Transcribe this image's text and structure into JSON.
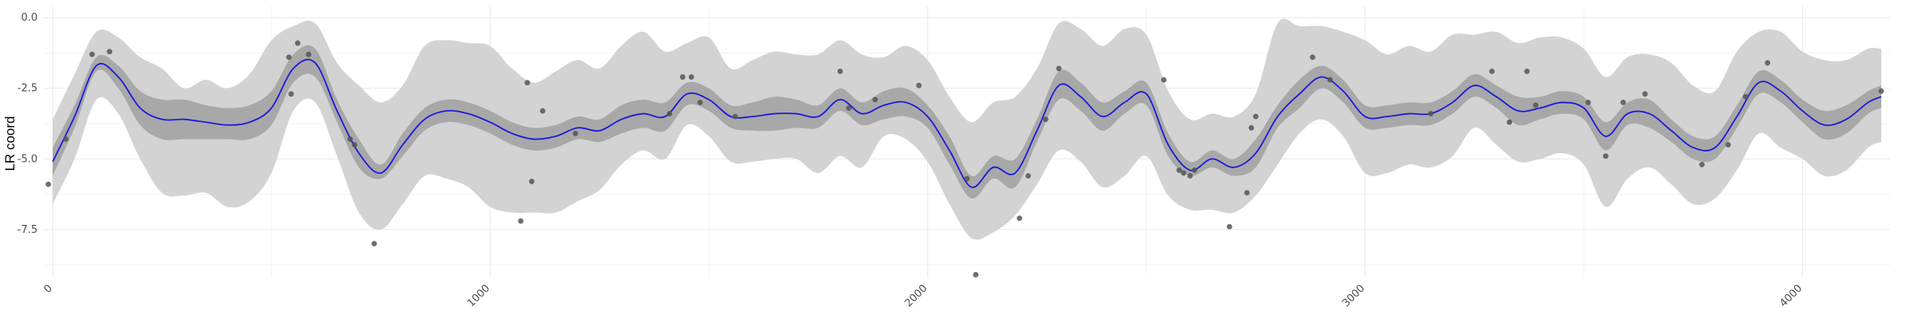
{
  "chart_data": {
    "type": "line",
    "title": "",
    "xlabel": "",
    "ylabel": "LR coord",
    "xlim": [
      -20,
      4200
    ],
    "ylim": [
      -9.2,
      0.4
    ],
    "x_ticks": [
      0,
      1000,
      2000,
      3000,
      4000
    ],
    "x_tick_labels": [
      "0",
      "1000",
      "2000",
      "3000",
      "4000"
    ],
    "y_ticks": [
      0.0,
      -2.5,
      -5.0,
      -7.5
    ],
    "y_tick_labels": [
      "0.0",
      "-2.5",
      "-5.0",
      "-7.5"
    ],
    "grid": true,
    "colors": {
      "mean_line": "#1a1adb",
      "inner_band": "#a8a8a8",
      "outer_band": "#d3d3d3",
      "points": "#555555",
      "grid": "#ebebeb"
    },
    "series": [
      {
        "kind": "line",
        "x": [
          0,
          50,
          100,
          150,
          200,
          250,
          300,
          350,
          400,
          450,
          500,
          550,
          600,
          650,
          700,
          750,
          800,
          850,
          900,
          950,
          1000,
          1050,
          1100,
          1150,
          1200,
          1250,
          1300,
          1350,
          1400,
          1450,
          1500,
          1550,
          1600,
          1650,
          1700,
          1750,
          1800,
          1850,
          1900,
          1950,
          2000,
          2050,
          2100,
          2150,
          2200,
          2250,
          2300,
          2350,
          2400,
          2450,
          2500,
          2550,
          2600,
          2650,
          2700,
          2750,
          2800,
          2850,
          2900,
          2950,
          3000,
          3050,
          3100,
          3150,
          3200,
          3250,
          3300,
          3350,
          3400,
          3450,
          3500,
          3550,
          3600,
          3650,
          3700,
          3750,
          3800,
          3850,
          3900,
          3950,
          4000,
          4050,
          4100,
          4150,
          4180
        ],
        "y": [
          -5.1,
          -3.5,
          -1.7,
          -2.1,
          -3.2,
          -3.6,
          -3.6,
          -3.7,
          -3.8,
          -3.7,
          -3.2,
          -1.8,
          -1.6,
          -3.3,
          -4.8,
          -5.5,
          -4.5,
          -3.6,
          -3.3,
          -3.4,
          -3.7,
          -4.1,
          -4.3,
          -4.2,
          -3.9,
          -4.0,
          -3.6,
          -3.4,
          -3.5,
          -2.7,
          -2.9,
          -3.5,
          -3.5,
          -3.4,
          -3.4,
          -3.5,
          -2.9,
          -3.4,
          -3.1,
          -3.0,
          -3.5,
          -4.7,
          -6.0,
          -5.3,
          -5.5,
          -4.0,
          -2.4,
          -2.8,
          -3.5,
          -3.0,
          -2.7,
          -4.5,
          -5.4,
          -5.0,
          -5.3,
          -4.8,
          -3.5,
          -2.7,
          -2.1,
          -2.6,
          -3.5,
          -3.5,
          -3.4,
          -3.4,
          -3.0,
          -2.4,
          -2.8,
          -3.3,
          -3.2,
          -3.0,
          -3.2,
          -4.2,
          -3.4,
          -3.4,
          -4.0,
          -4.6,
          -4.6,
          -3.5,
          -2.3,
          -2.6,
          -3.3,
          -3.8,
          -3.6,
          -3.0,
          -2.8
        ]
      },
      {
        "kind": "band",
        "name": "inner",
        "lower": [
          -5.6,
          -3.9,
          -1.9,
          -2.5,
          -3.8,
          -4.3,
          -4.3,
          -4.3,
          -4.3,
          -4.3,
          -3.8,
          -2.3,
          -2.1,
          -3.7,
          -5.3,
          -5.7,
          -4.9,
          -4.0,
          -3.7,
          -3.8,
          -4.1,
          -4.5,
          -4.7,
          -4.6,
          -4.3,
          -4.4,
          -4.1,
          -3.9,
          -4.0,
          -3.1,
          -3.3,
          -3.9,
          -4.0,
          -4.0,
          -3.9,
          -3.9,
          -3.3,
          -3.8,
          -3.6,
          -3.5,
          -3.9,
          -5.2,
          -6.4,
          -5.7,
          -6.0,
          -4.4,
          -2.9,
          -3.3,
          -4.0,
          -3.4,
          -3.1,
          -4.9,
          -5.6,
          -5.3,
          -5.6,
          -5.3,
          -3.9,
          -3.2,
          -2.5,
          -3.0,
          -3.9,
          -3.9,
          -3.8,
          -3.8,
          -3.4,
          -2.8,
          -3.2,
          -3.8,
          -3.6,
          -3.4,
          -3.6,
          -4.7,
          -3.8,
          -3.9,
          -4.4,
          -5.0,
          -5.0,
          -3.9,
          -2.7,
          -3.0,
          -3.7,
          -4.3,
          -4.1,
          -3.4,
          -3.2
        ],
        "upper": [
          -4.6,
          -3.1,
          -1.4,
          -1.7,
          -2.6,
          -2.9,
          -2.9,
          -3.1,
          -3.2,
          -3.1,
          -2.6,
          -1.3,
          -1.1,
          -2.9,
          -4.3,
          -5.2,
          -4.1,
          -3.2,
          -2.9,
          -3.0,
          -3.3,
          -3.7,
          -3.9,
          -3.8,
          -3.5,
          -3.6,
          -3.1,
          -2.9,
          -3.0,
          -2.3,
          -2.5,
          -3.1,
          -3.0,
          -2.8,
          -2.9,
          -3.1,
          -2.5,
          -3.0,
          -2.6,
          -2.5,
          -3.1,
          -4.2,
          -5.6,
          -4.9,
          -5.0,
          -3.6,
          -1.9,
          -2.3,
          -3.0,
          -2.6,
          -2.3,
          -4.1,
          -5.1,
          -4.7,
          -5.0,
          -4.3,
          -3.1,
          -2.2,
          -1.7,
          -2.2,
          -3.1,
          -3.1,
          -3.0,
          -3.0,
          -2.6,
          -2.0,
          -2.4,
          -2.8,
          -2.8,
          -2.6,
          -2.8,
          -3.7,
          -3.0,
          -2.9,
          -3.6,
          -4.2,
          -4.2,
          -3.1,
          -1.9,
          -2.2,
          -2.9,
          -3.3,
          -3.1,
          -2.6,
          -2.4
        ]
      },
      {
        "kind": "band",
        "name": "outer",
        "lower": [
          -6.6,
          -5.0,
          -2.9,
          -3.4,
          -5.0,
          -6.2,
          -6.3,
          -6.2,
          -6.7,
          -6.5,
          -5.5,
          -3.3,
          -3.0,
          -4.9,
          -6.9,
          -7.5,
          -6.6,
          -5.6,
          -5.7,
          -6.0,
          -6.7,
          -6.9,
          -6.9,
          -6.9,
          -6.5,
          -6.1,
          -5.2,
          -4.7,
          -5.0,
          -3.8,
          -4.2,
          -5.1,
          -5.1,
          -5.0,
          -5.0,
          -5.5,
          -4.9,
          -5.3,
          -4.2,
          -4.3,
          -5.1,
          -6.6,
          -7.8,
          -7.6,
          -7.0,
          -5.9,
          -4.7,
          -5.1,
          -6.0,
          -5.6,
          -4.9,
          -6.3,
          -6.8,
          -6.8,
          -6.9,
          -6.3,
          -5.2,
          -4.1,
          -3.6,
          -4.2,
          -5.5,
          -5.5,
          -5.2,
          -5.3,
          -4.9,
          -3.9,
          -4.5,
          -5.1,
          -5.0,
          -4.8,
          -5.2,
          -6.7,
          -5.7,
          -5.3,
          -5.9,
          -6.6,
          -6.4,
          -5.4,
          -4.1,
          -4.6,
          -5.0,
          -5.6,
          -5.4,
          -4.6,
          -4.4
        ],
        "upper": [
          -3.6,
          -2.0,
          -0.5,
          -0.7,
          -1.4,
          -1.8,
          -2.5,
          -2.2,
          -2.5,
          -2.0,
          -0.8,
          -0.3,
          -0.2,
          -1.6,
          -2.4,
          -3.0,
          -2.4,
          -1.0,
          -0.8,
          -0.9,
          -1.0,
          -1.8,
          -2.3,
          -1.9,
          -1.5,
          -1.8,
          -1.0,
          -0.5,
          -1.2,
          -0.9,
          -0.7,
          -1.8,
          -1.5,
          -1.2,
          -1.3,
          -1.3,
          -0.8,
          -1.3,
          -1.4,
          -1.0,
          -1.5,
          -2.8,
          -3.7,
          -3.0,
          -2.8,
          -1.8,
          -0.2,
          -0.4,
          -1.0,
          -0.4,
          -0.6,
          -2.6,
          -3.6,
          -3.4,
          -3.5,
          -2.7,
          -0.2,
          -0.3,
          -0.3,
          -0.5,
          -0.8,
          -1.3,
          -1.0,
          -1.2,
          -0.6,
          -0.6,
          -0.5,
          -0.9,
          -0.7,
          -0.7,
          -1.1,
          -2.1,
          -1.4,
          -1.3,
          -1.6,
          -2.4,
          -2.6,
          -1.2,
          -0.5,
          -0.5,
          -1.2,
          -1.5,
          -1.5,
          -1.1,
          -1.1
        ]
      },
      {
        "kind": "scatter",
        "x": [
          -10,
          30,
          90,
          130,
          540,
          545,
          560,
          585,
          680,
          690,
          735,
          1070,
          1085,
          1095,
          1120,
          1195,
          1410,
          1440,
          1460,
          1480,
          1560,
          1800,
          1820,
          1880,
          1980,
          2090,
          2110,
          2210,
          2230,
          2270,
          2300,
          2540,
          2575,
          2585,
          2600,
          2610,
          2690,
          2730,
          2740,
          2750,
          2880,
          2920,
          3150,
          3290,
          3330,
          3370,
          3390,
          3510,
          3550,
          3590,
          3640,
          3770,
          3830,
          3870,
          3920,
          4180
        ],
        "y": [
          -5.9,
          -4.3,
          -1.3,
          -1.2,
          -1.4,
          -2.7,
          -0.9,
          -1.3,
          -4.3,
          -4.5,
          -8.0,
          -7.2,
          -2.3,
          -5.8,
          -3.3,
          -4.1,
          -3.4,
          -2.1,
          -2.1,
          -3.0,
          -3.5,
          -1.9,
          -3.2,
          -2.9,
          -2.4,
          -5.7,
          -9.1,
          -7.1,
          -5.6,
          -3.6,
          -1.8,
          -2.2,
          -5.4,
          -5.5,
          -5.6,
          -5.4,
          -7.4,
          -6.2,
          -3.9,
          -3.5,
          -1.4,
          -2.2,
          -3.4,
          -1.9,
          -3.7,
          -1.9,
          -3.1,
          -3.0,
          -4.9,
          -3.0,
          -2.7,
          -5.2,
          -4.5,
          -2.8,
          -1.6,
          -2.6
        ]
      }
    ]
  }
}
